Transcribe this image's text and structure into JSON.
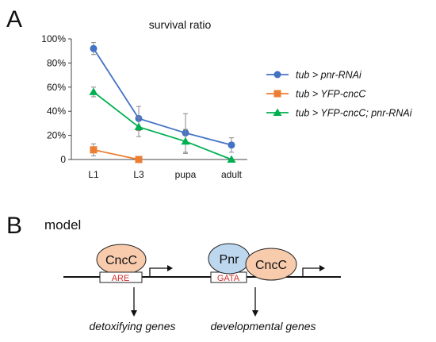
{
  "figure": {
    "panel_a_label": "A",
    "panel_b_label": "B"
  },
  "chart_data": {
    "type": "line",
    "title": "survival ratio",
    "xlabel": "",
    "ylabel": "",
    "categories": [
      "L1",
      "L3",
      "pupa",
      "adult"
    ],
    "yticks": [
      "0",
      "20%",
      "40%",
      "60%",
      "80%",
      "100%"
    ],
    "ylim": [
      0,
      100
    ],
    "grid": false,
    "legend_position": "right",
    "series": [
      {
        "name": "tub > pnr-RNAi",
        "color": "#4472c4",
        "marker": "circle",
        "values": [
          92,
          34,
          22,
          12
        ],
        "errors": [
          5,
          10,
          16,
          6
        ]
      },
      {
        "name": "tub > YFP-cncC",
        "color": "#ed7d31",
        "marker": "square",
        "values": [
          8,
          0,
          null,
          null
        ],
        "errors": [
          5,
          0,
          null,
          null
        ]
      },
      {
        "name": "tub > YFP-cncC; pnr-RNAi",
        "color": "#00b050",
        "marker": "triangle",
        "values": [
          56,
          27,
          15,
          0
        ],
        "errors": [
          4,
          8,
          10,
          0
        ]
      }
    ]
  },
  "model": {
    "title": "model",
    "left": {
      "protein": "CncC",
      "element": "ARE",
      "genes": "detoxifying genes"
    },
    "right": {
      "protein1": "Pnr",
      "protein2": "CncC",
      "element": "GATA",
      "genes": "developmental genes"
    },
    "colors": {
      "cncc_fill": "#f8cbad",
      "pnr_fill": "#bdd7ee",
      "element_text": "#d0312d"
    }
  }
}
